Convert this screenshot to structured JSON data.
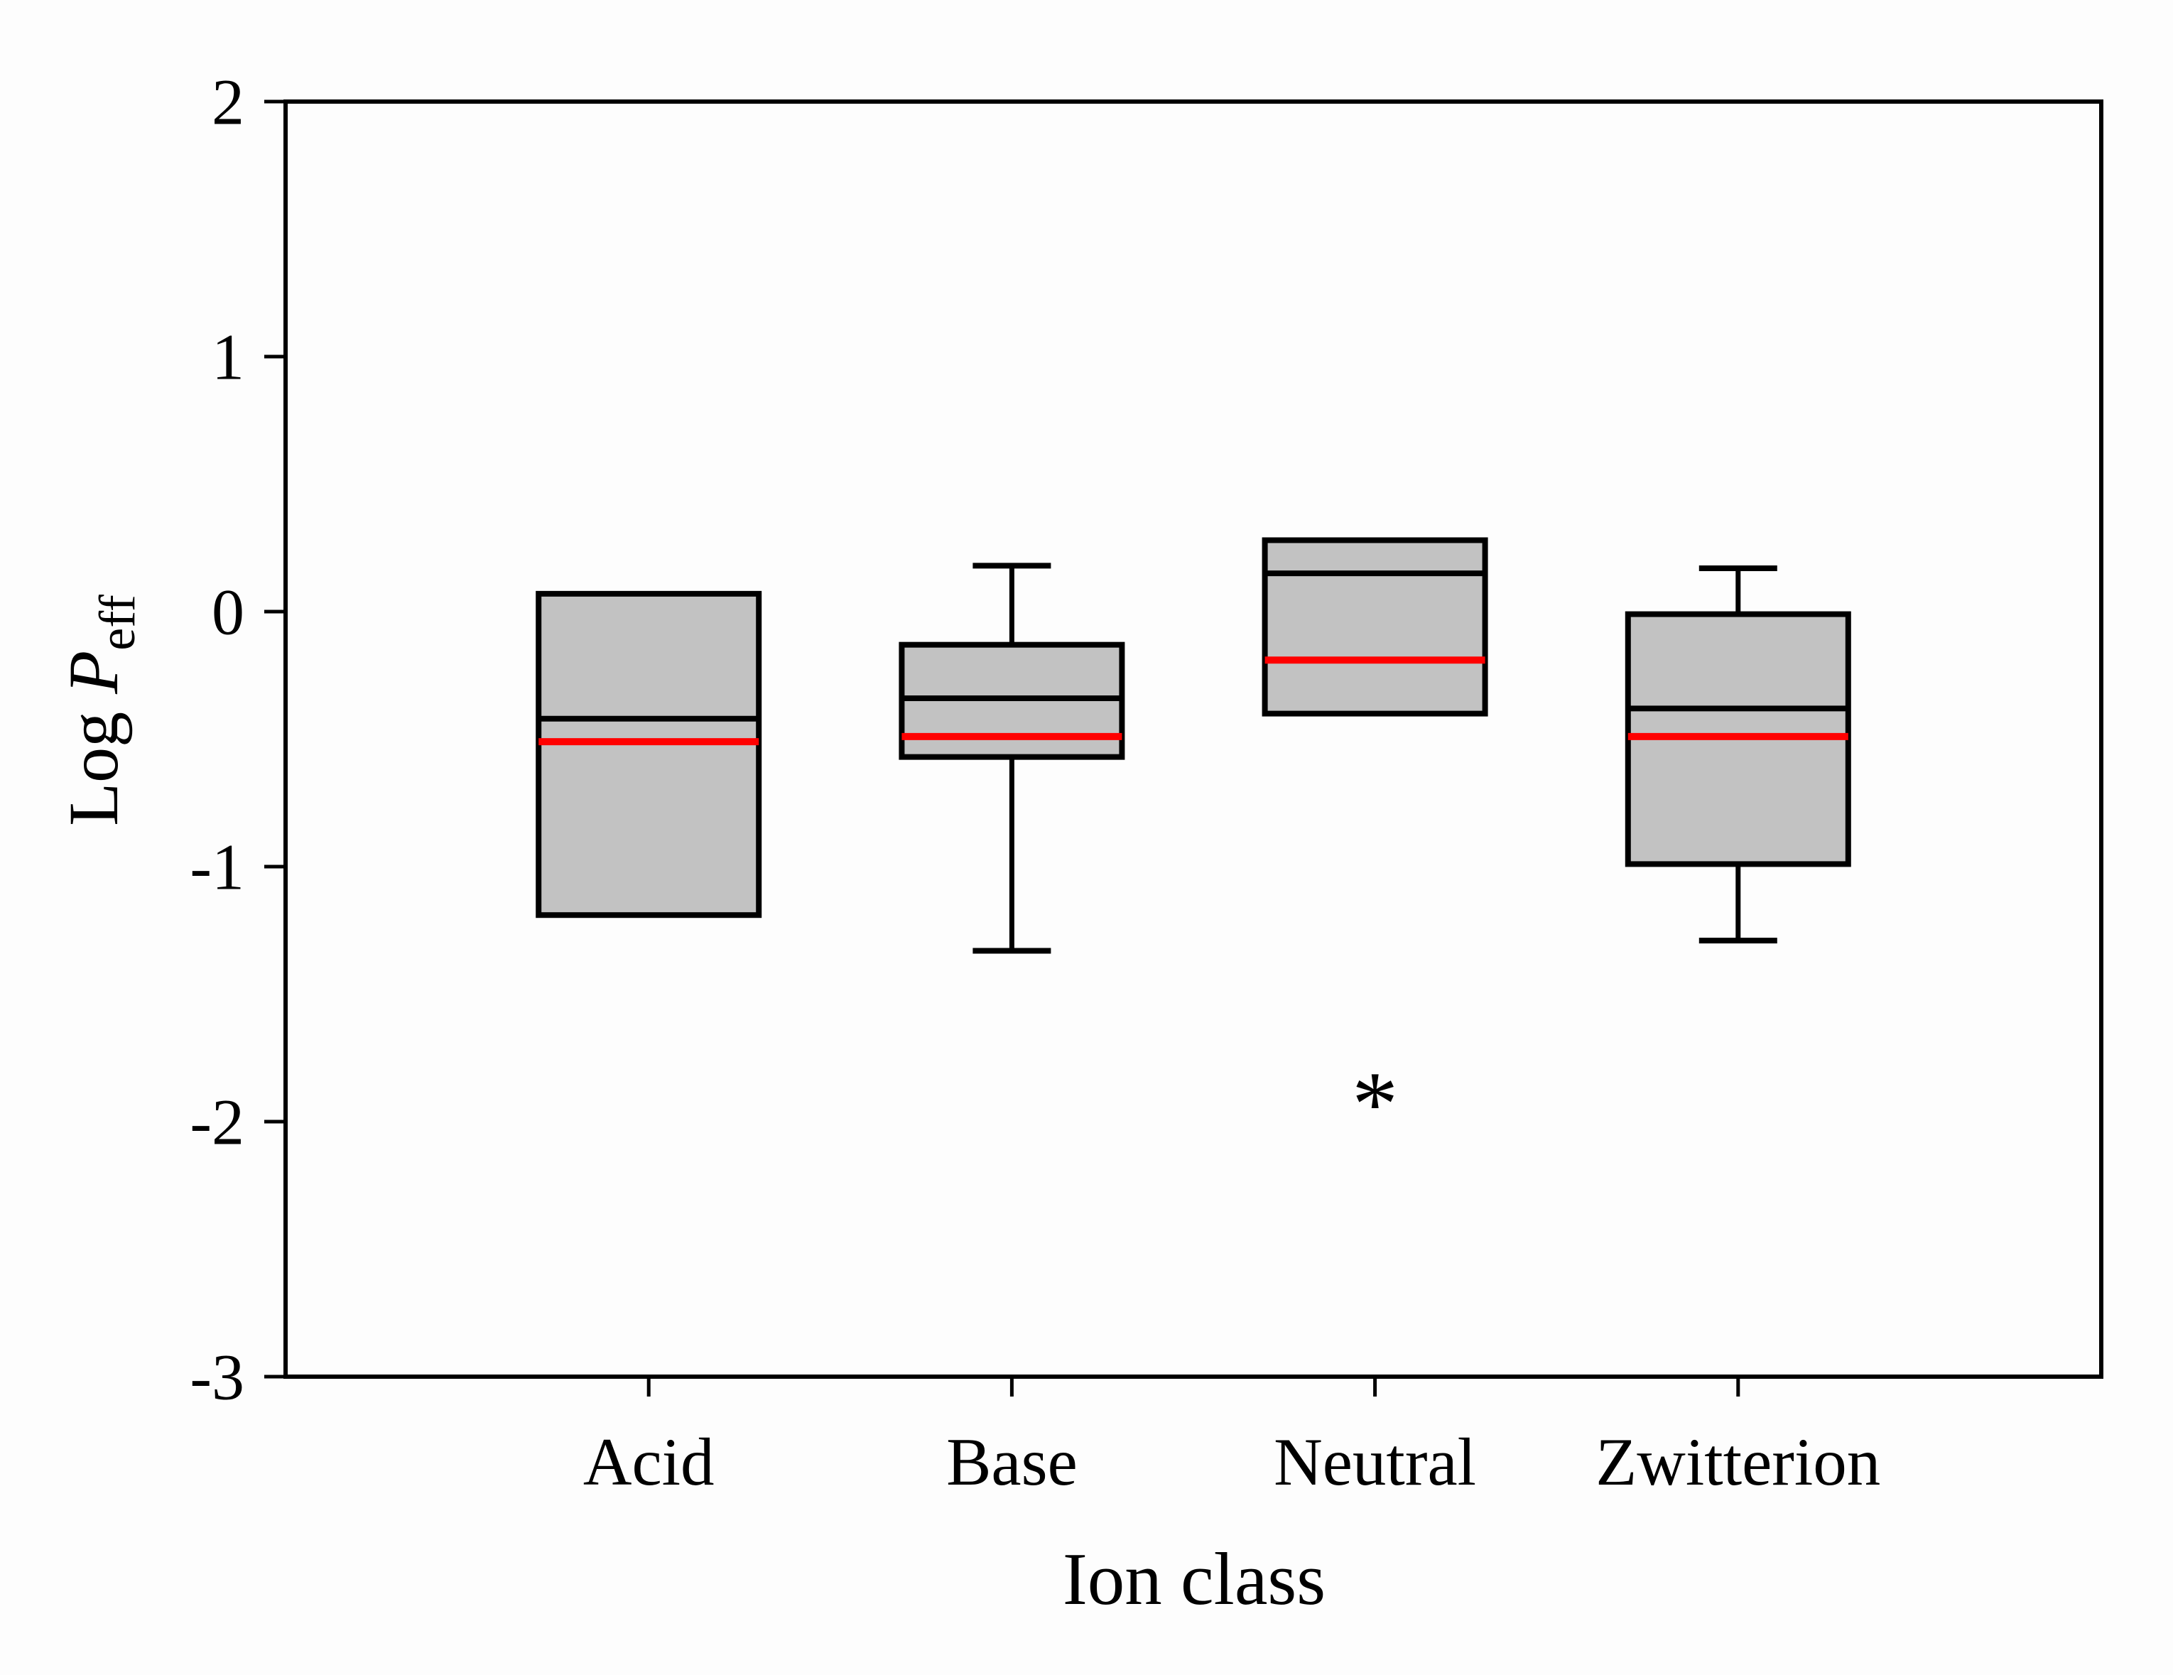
{
  "figure": {
    "background": "#fdfdfd",
    "y_axis_title": {
      "prefix": "Log ",
      "italic_symbol": "P",
      "subscript": "eff"
    },
    "x_axis_title": "Ion class"
  },
  "chart_data": {
    "type": "box",
    "title": "",
    "xlabel": "Ion class",
    "ylabel": "Log P_eff",
    "categories": [
      "Acid",
      "Base",
      "Neutral",
      "Zwitterion"
    ],
    "ylim": [
      -3,
      2
    ],
    "yticks": [
      2,
      1,
      0,
      -1,
      -2,
      -3
    ],
    "ytick_labels": [
      "2",
      "1",
      "0",
      "-1",
      "-2",
      "-3"
    ],
    "grid": false,
    "legend_position": "none",
    "outlier_marker": "*",
    "colors": {
      "box_fill": "#c2c2c2",
      "box_border": "#000000",
      "median_line": "#000000",
      "mean_line": "#ff0000",
      "axis": "#000000",
      "whisker": "#000000",
      "outlier": "#000000"
    },
    "boxes": [
      {
        "category": "Acid",
        "q1": -1.19,
        "median": -0.42,
        "mean": -0.51,
        "q3": 0.07,
        "whisker_low": null,
        "whisker_high": null,
        "outliers": []
      },
      {
        "category": "Base",
        "q1": -0.57,
        "median": -0.34,
        "mean": -0.49,
        "q3": -0.13,
        "whisker_low": -1.33,
        "whisker_high": 0.18,
        "outliers": []
      },
      {
        "category": "Neutral",
        "q1": -0.4,
        "median": 0.15,
        "mean": -0.19,
        "q3": 0.28,
        "whisker_low": null,
        "whisker_high": null,
        "outliers": [
          -1.89
        ]
      },
      {
        "category": "Zwitterion",
        "q1": -0.99,
        "median": -0.38,
        "mean": -0.49,
        "q3": -0.01,
        "whisker_low": -1.29,
        "whisker_high": 0.17,
        "outliers": []
      }
    ]
  }
}
